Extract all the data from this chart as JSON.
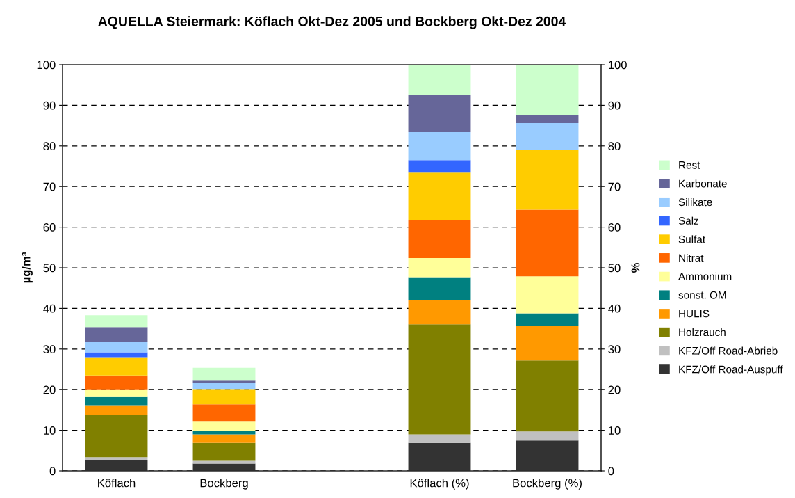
{
  "chart_data": {
    "type": "bar",
    "stacked": true,
    "title": "AQUELLA Steiermark: Köflach Okt-Dez 2005 und Bockberg Okt-Dez 2004",
    "ylabel": "µg/m³",
    "y2label": "%",
    "categories": [
      "Köflach",
      "Bockberg",
      null,
      "Köflach (%)",
      "Bockberg (%)"
    ],
    "ylim": [
      0,
      100
    ],
    "yticks": [
      0,
      10,
      20,
      30,
      40,
      50,
      60,
      70,
      80,
      90,
      100
    ],
    "y2lim": [
      0,
      100
    ],
    "y2ticks": [
      0,
      10,
      20,
      30,
      40,
      50,
      60,
      70,
      80,
      90,
      100
    ],
    "grid": "y",
    "legend": "right",
    "series": [
      {
        "name": "KFZ/Off Road-Auspuff",
        "color": "#333333",
        "values": [
          2.7,
          1.8,
          null,
          6.9,
          7.5
        ]
      },
      {
        "name": "KFZ/Off Road-Abrieb",
        "color": "#c0c0c0",
        "values": [
          0.7,
          0.7,
          null,
          2.1,
          2.2
        ]
      },
      {
        "name": "Holzrauch",
        "color": "#808000",
        "values": [
          10.4,
          4.4,
          null,
          27.1,
          17.5
        ]
      },
      {
        "name": "HULIS",
        "color": "#ff9900",
        "values": [
          2.2,
          2.1,
          null,
          6.0,
          8.6
        ]
      },
      {
        "name": "sonst. OM",
        "color": "#008080",
        "values": [
          2.2,
          0.9,
          null,
          5.6,
          3.0
        ]
      },
      {
        "name": "Ammonium",
        "color": "#ffff99",
        "values": [
          1.7,
          2.2,
          null,
          4.7,
          9.1
        ]
      },
      {
        "name": "Nitrat",
        "color": "#ff6600",
        "values": [
          3.6,
          4.3,
          null,
          9.4,
          16.4
        ]
      },
      {
        "name": "Sulfat",
        "color": "#ffcc00",
        "values": [
          4.5,
          3.6,
          null,
          11.6,
          14.8
        ]
      },
      {
        "name": "Salz",
        "color": "#3366ff",
        "values": [
          1.2,
          0,
          null,
          3.1,
          0
        ]
      },
      {
        "name": "Silikate",
        "color": "#99ccff",
        "values": [
          2.6,
          1.7,
          null,
          6.9,
          6.5
        ]
      },
      {
        "name": "Karbonate",
        "color": "#666699",
        "values": [
          3.6,
          0.5,
          null,
          9.2,
          2.0
        ]
      },
      {
        "name": "Rest",
        "color": "#ccffcc",
        "values": [
          2.9,
          3.2,
          null,
          7.4,
          12.4
        ]
      }
    ]
  }
}
